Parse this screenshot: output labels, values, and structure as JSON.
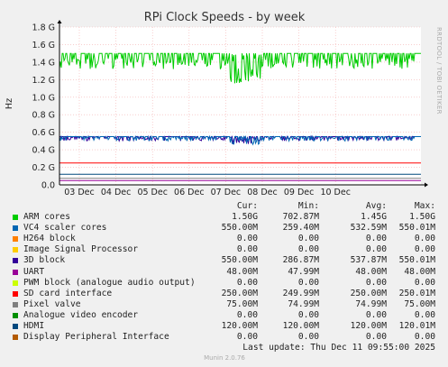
{
  "chart_data": {
    "type": "line",
    "title": "RPi Clock Speeds - by week",
    "ylabel": "Hz",
    "ylim": [
      0,
      1.8
    ],
    "yticks": [
      "0.0",
      "0.2 G",
      "0.4 G",
      "0.6 G",
      "0.8 G",
      "1.0 G",
      "1.2 G",
      "1.4 G",
      "1.6 G",
      "1.8 G"
    ],
    "xticks": [
      "03 Dec",
      "04 Dec",
      "05 Dec",
      "06 Dec",
      "07 Dec",
      "08 Dec",
      "09 Dec",
      "10 Dec"
    ],
    "grid": true,
    "side_label": "RRDTOOL / TOBI OETIKER",
    "footer": "Munin 2.0.76",
    "columns": {
      "cur": "Cur:",
      "min": "Min:",
      "avg": "Avg:",
      "max": "Max:"
    },
    "last_update": "Last update: Thu Dec 11 09:55:00 2025",
    "series": [
      {
        "name": "ARM cores",
        "color": "#00cc00",
        "cur": "1.50G",
        "min": "702.87M",
        "avg": "1.45G",
        "max": "1.50G",
        "base": 1.5,
        "pattern": "arm"
      },
      {
        "name": "VC4 scaler cores",
        "color": "#0066b3",
        "cur": "550.00M",
        "min": "259.40M",
        "avg": "532.59M",
        "max": "550.01M",
        "base": 0.55,
        "pattern": "vc4"
      },
      {
        "name": "H264 block",
        "color": "#ff8000",
        "cur": "0.00",
        "min": "0.00",
        "avg": "0.00",
        "max": "0.00",
        "base": 0.0,
        "pattern": "flat"
      },
      {
        "name": "Image Signal Processor",
        "color": "#ffcc00",
        "cur": "0.00",
        "min": "0.00",
        "avg": "0.00",
        "max": "0.00",
        "base": 0.0,
        "pattern": "flat"
      },
      {
        "name": "3D block",
        "color": "#330099",
        "cur": "550.00M",
        "min": "286.87M",
        "avg": "537.87M",
        "max": "550.01M",
        "base": 0.55,
        "pattern": "vc4"
      },
      {
        "name": "UART",
        "color": "#990099",
        "cur": "48.00M",
        "min": "47.99M",
        "avg": "48.00M",
        "max": "48.00M",
        "base": 0.048,
        "pattern": "flat"
      },
      {
        "name": "PWM block (analogue audio output)",
        "color": "#ccff00",
        "cur": "0.00",
        "min": "0.00",
        "avg": "0.00",
        "max": "0.00",
        "base": 0.0,
        "pattern": "flat"
      },
      {
        "name": "SD card interface",
        "color": "#ff0000",
        "cur": "250.00M",
        "min": "249.99M",
        "avg": "250.00M",
        "max": "250.01M",
        "base": 0.25,
        "pattern": "flat"
      },
      {
        "name": "Pixel valve",
        "color": "#808080",
        "cur": "75.00M",
        "min": "74.99M",
        "avg": "74.99M",
        "max": "75.00M",
        "base": 0.075,
        "pattern": "flat"
      },
      {
        "name": "Analogue video encoder",
        "color": "#008f00",
        "cur": "0.00",
        "min": "0.00",
        "avg": "0.00",
        "max": "0.00",
        "base": 0.0,
        "pattern": "flat"
      },
      {
        "name": "HDMI",
        "color": "#00487d",
        "cur": "120.00M",
        "min": "120.00M",
        "avg": "120.00M",
        "max": "120.01M",
        "base": 0.12,
        "pattern": "flat"
      },
      {
        "name": "Display Peripheral Interface",
        "color": "#b35a00",
        "cur": "0.00",
        "min": "0.00",
        "avg": "0.00",
        "max": "0.00",
        "base": 0.0,
        "pattern": "flat"
      }
    ]
  }
}
